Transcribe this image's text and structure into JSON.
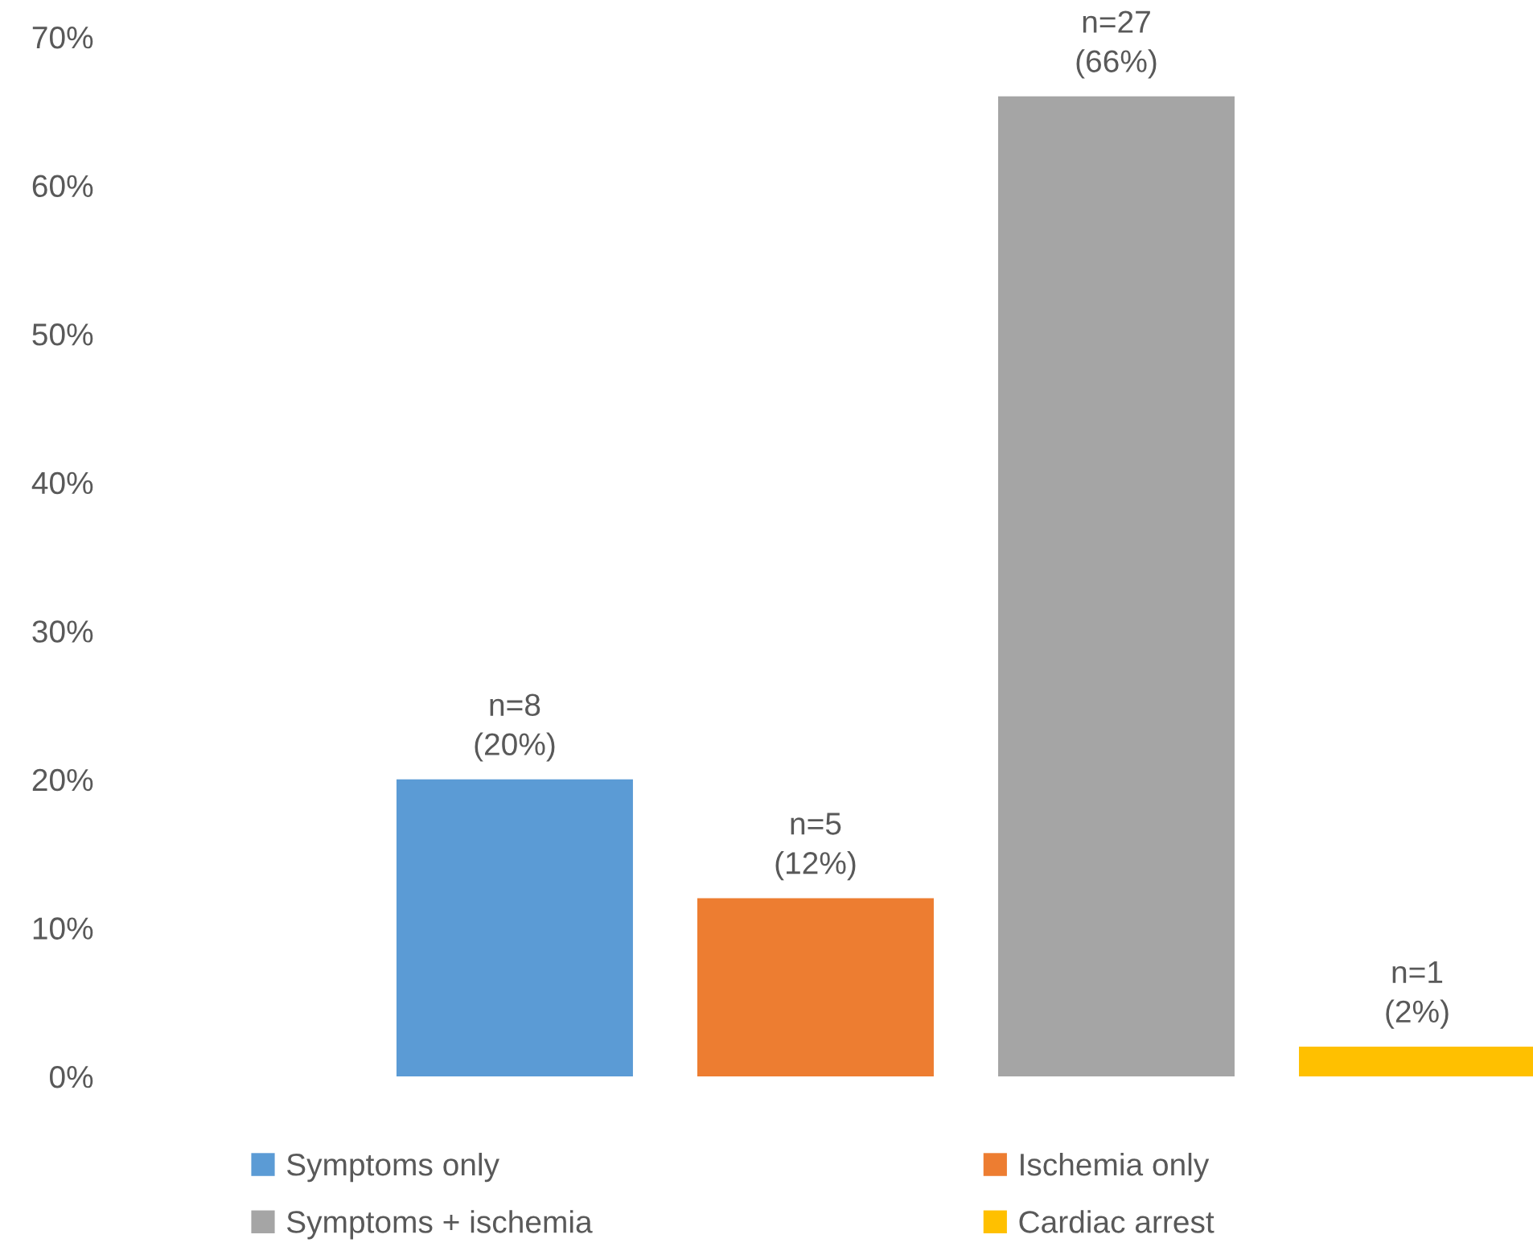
{
  "chart_data": {
    "type": "bar",
    "categories": [
      null
    ],
    "series": [
      {
        "name": "Symptoms only",
        "color": "#5b9bd5",
        "values": [
          20
        ],
        "value_labels": [
          "n=8\n(20%)"
        ]
      },
      {
        "name": "Ischemia only",
        "color": "#ed7d31",
        "values": [
          12
        ],
        "value_labels": [
          "n=5\n(12%)"
        ]
      },
      {
        "name": "Symptoms + ischemia",
        "color": "#a5a5a5",
        "values": [
          66
        ],
        "value_labels": [
          "n=27\n(66%)"
        ]
      },
      {
        "name": "Cardiac arrest",
        "color": "#ffc000",
        "values": [
          2
        ],
        "value_labels": [
          "n=1\n(2%)"
        ]
      }
    ],
    "ylim": [
      0,
      70
    ],
    "yticks": [
      {
        "value": 0,
        "label": "0%"
      },
      {
        "value": 10,
        "label": "10%"
      },
      {
        "value": 20,
        "label": "20%"
      },
      {
        "value": 30,
        "label": "30%"
      },
      {
        "value": 40,
        "label": "40%"
      },
      {
        "value": 50,
        "label": "50%"
      },
      {
        "value": 60,
        "label": "60%"
      },
      {
        "value": 70,
        "label": "70%"
      }
    ],
    "grid": false,
    "legend": "bottom"
  }
}
